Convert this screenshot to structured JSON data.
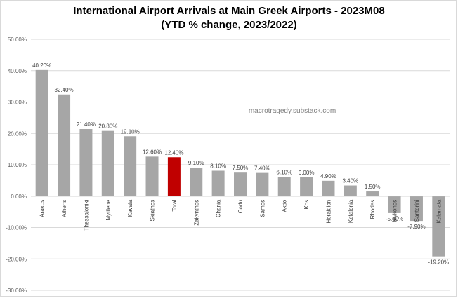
{
  "chart_data": {
    "type": "bar",
    "title": "International Airport Arrivals at Main Greek Airports - 2023M08",
    "subtitle": "(YTD % change, 2023/2022)",
    "watermark": "macrotragedy.substack.com",
    "categories": [
      "Araxos",
      "Athens",
      "Thessaloniki",
      "Mytilene",
      "Kavala",
      "Skiathos",
      "Total",
      "Zakynthos",
      "Chania",
      "Corfu",
      "Samos",
      "Aktio",
      "Kos",
      "Heraklion",
      "Kefalonia",
      "Rhodes",
      "Mykonos",
      "Santorini",
      "Kalamata"
    ],
    "values": [
      40.2,
      32.4,
      21.4,
      20.8,
      19.1,
      12.6,
      12.4,
      9.1,
      8.1,
      7.5,
      7.4,
      6.1,
      6.0,
      4.9,
      3.4,
      1.5,
      -5.4,
      -7.9,
      -19.2
    ],
    "data_labels": [
      "40.20%",
      "32.40%",
      "21.40%",
      "20.80%",
      "19.10%",
      "12.60%",
      "12.40%",
      "9.10%",
      "8.10%",
      "7.50%",
      "7.40%",
      "6.10%",
      "6.00%",
      "4.90%",
      "3.40%",
      "1.50%",
      "-5.40%",
      "-7.90%",
      "-19.20%"
    ],
    "y_ticks": [
      50,
      40,
      30,
      20,
      10,
      0,
      -10,
      -20,
      -30
    ],
    "y_tick_labels": [
      "50.00%",
      "40.00%",
      "30.00%",
      "20.00%",
      "10.00%",
      "0.00%",
      "-10.00%",
      "-20.00%",
      "-30.00%"
    ],
    "ylim": [
      -30,
      50
    ],
    "grid": true,
    "legend": "none",
    "colors": {
      "bar": "#a6a6a6",
      "highlight": "#c00000",
      "grid": "#d9d9d9",
      "axis_text": "#595959"
    },
    "highlight_category": "Total"
  }
}
